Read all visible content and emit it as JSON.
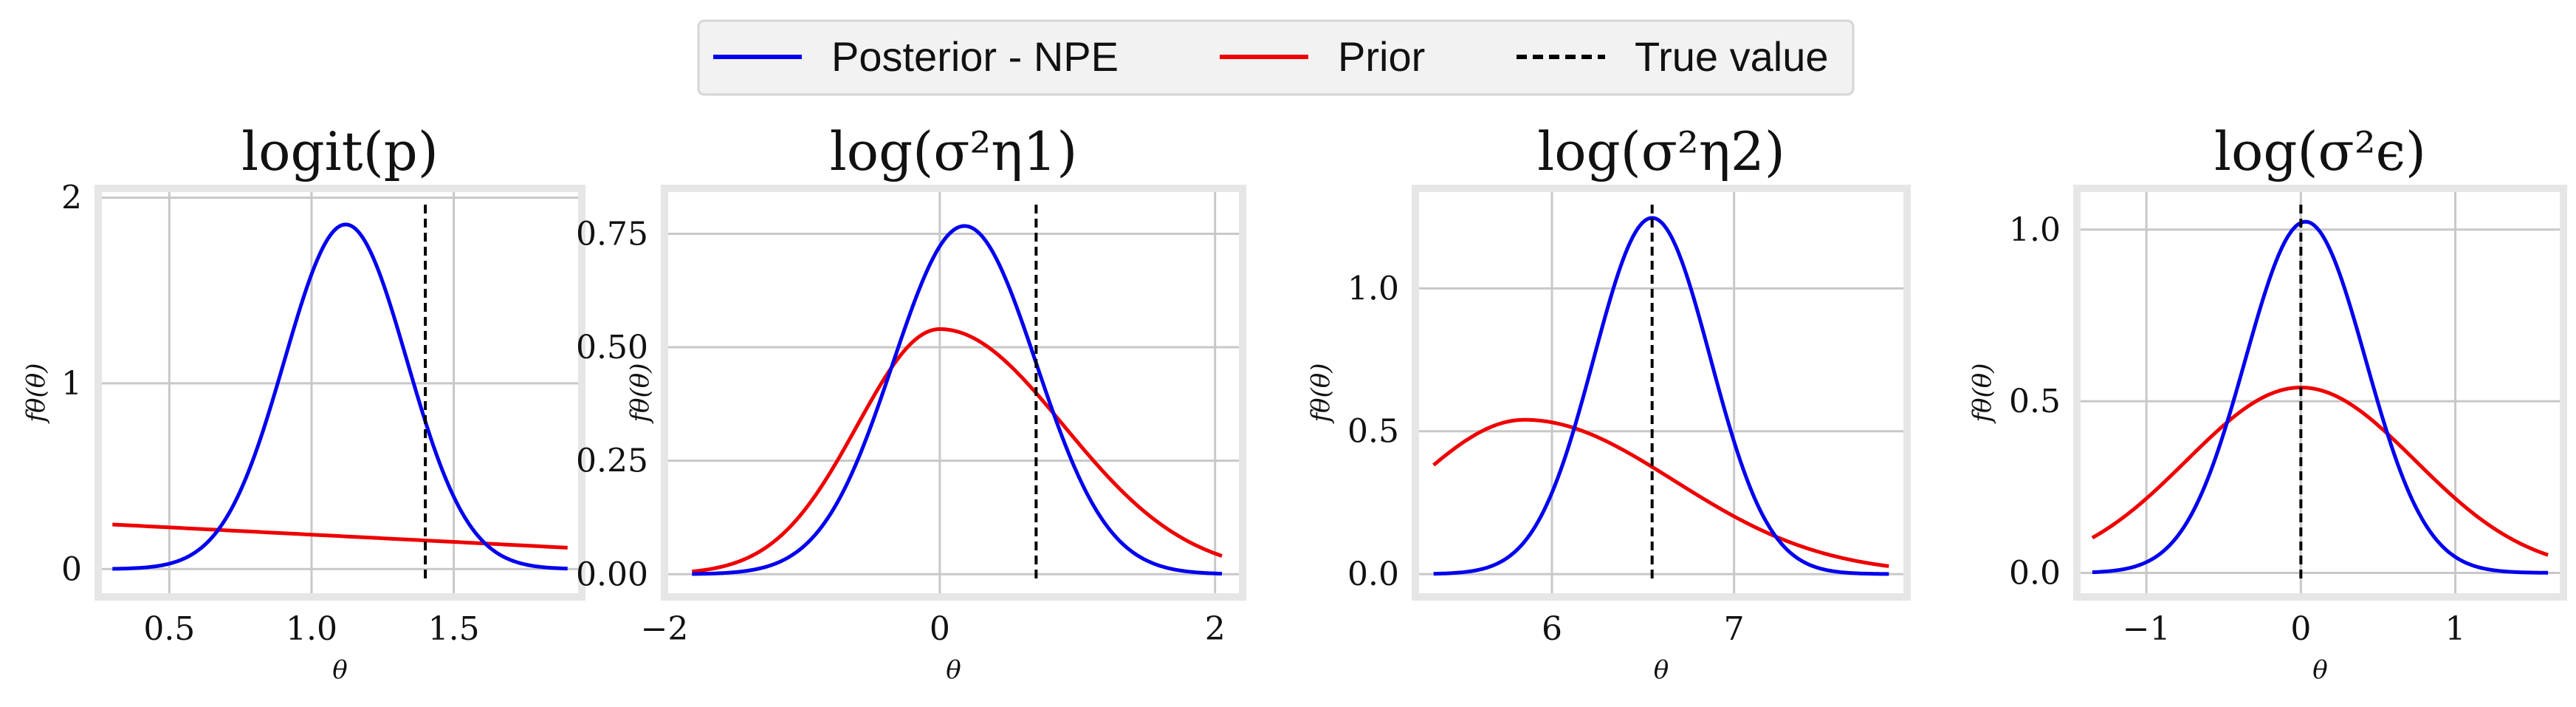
{
  "legend": {
    "entries": [
      {
        "label": "Posterior - NPE",
        "color": "#0000ee",
        "style": "solid"
      },
      {
        "label": "Prior",
        "color": "#ee0000",
        "style": "solid"
      },
      {
        "label": "True value",
        "color": "#000000",
        "style": "dashed"
      }
    ]
  },
  "chart_data": [
    {
      "type": "line",
      "title": "logit(p)",
      "xlabel": "θ",
      "ylabel": "fθ(θ)",
      "xlim": [
        0.25,
        1.95
      ],
      "ylim": [
        -0.15,
        2.05
      ],
      "xticks": [
        {
          "v": 0.5,
          "label": "0.5"
        },
        {
          "v": 1.0,
          "label": "1.0"
        },
        {
          "v": 1.5,
          "label": "1.5"
        }
      ],
      "yticks": [
        {
          "v": 0,
          "label": "0"
        },
        {
          "v": 1,
          "label": "1"
        },
        {
          "v": 2,
          "label": "2"
        }
      ],
      "true_value": 1.4,
      "posterior": {
        "kind": "normal",
        "mu": 1.12,
        "sigma": 0.215,
        "xmin": 0.3,
        "xmax": 1.9
      },
      "prior": {
        "kind": "linear",
        "y0": 0.24,
        "y1": 0.115,
        "xmin": 0.3,
        "xmax": 1.9
      },
      "grid": true
    },
    {
      "type": "line",
      "title": "log(σ²η1)",
      "xlabel": "θ",
      "ylabel": "fθ(θ)",
      "xlim": [
        -2.0,
        2.2
      ],
      "ylim": [
        -0.05,
        0.85
      ],
      "xticks": [
        {
          "v": -2,
          "label": "−2"
        },
        {
          "v": 0,
          "label": "0"
        },
        {
          "v": 2,
          "label": "2"
        }
      ],
      "yticks": [
        {
          "v": 0,
          "label": "0.00"
        },
        {
          "v": 0.25,
          "label": "0.25"
        },
        {
          "v": 0.5,
          "label": "0.50"
        },
        {
          "v": 0.75,
          "label": "0.75"
        }
      ],
      "true_value": 0.7,
      "posterior": {
        "kind": "normal",
        "mu": 0.18,
        "sigma": 0.52,
        "xmin": -1.8,
        "xmax": 2.05
      },
      "prior": {
        "kind": "skewnormal",
        "mu": 0.0,
        "sigmaL": 0.6,
        "sigmaR": 0.9,
        "peak": 0.54,
        "xmin": -1.8,
        "xmax": 2.05
      },
      "grid": true
    },
    {
      "type": "line",
      "title": "log(σ²η2)",
      "xlabel": "θ",
      "ylabel": "fθ(θ)",
      "xlim": [
        5.25,
        7.95
      ],
      "ylim": [
        -0.08,
        1.35
      ],
      "xticks": [
        {
          "v": 6,
          "label": "6"
        },
        {
          "v": 7,
          "label": "7"
        }
      ],
      "yticks": [
        {
          "v": 0,
          "label": "0.0"
        },
        {
          "v": 0.5,
          "label": "0.5"
        },
        {
          "v": 1.0,
          "label": "1.0"
        }
      ],
      "true_value": 6.55,
      "posterior": {
        "kind": "normal",
        "mu": 6.55,
        "sigma": 0.32,
        "xmin": 5.35,
        "xmax": 7.85
      },
      "prior": {
        "kind": "skewnormal",
        "mu": 5.85,
        "sigmaL": 0.6,
        "sigmaR": 0.82,
        "peak": 0.54,
        "xmin": 5.35,
        "xmax": 7.85
      },
      "grid": true
    },
    {
      "type": "line",
      "title": "log(σ²ϵ)",
      "xlabel": "θ",
      "ylabel": "fθ(θ)",
      "xlim": [
        -1.45,
        1.7
      ],
      "ylim": [
        -0.07,
        1.12
      ],
      "xticks": [
        {
          "v": -1,
          "label": "−1"
        },
        {
          "v": 0,
          "label": "0"
        },
        {
          "v": 1,
          "label": "1"
        }
      ],
      "yticks": [
        {
          "v": 0,
          "label": "0.0"
        },
        {
          "v": 0.5,
          "label": "0.5"
        },
        {
          "v": 1.0,
          "label": "1.0"
        }
      ],
      "true_value": 0.0,
      "posterior": {
        "kind": "normal",
        "mu": 0.03,
        "sigma": 0.39,
        "xmin": -1.35,
        "xmax": 1.6
      },
      "prior": {
        "kind": "normal",
        "mu": 0.0,
        "sigma": 0.74,
        "peak": 0.54,
        "xmin": -1.35,
        "xmax": 1.6
      },
      "grid": true
    }
  ]
}
